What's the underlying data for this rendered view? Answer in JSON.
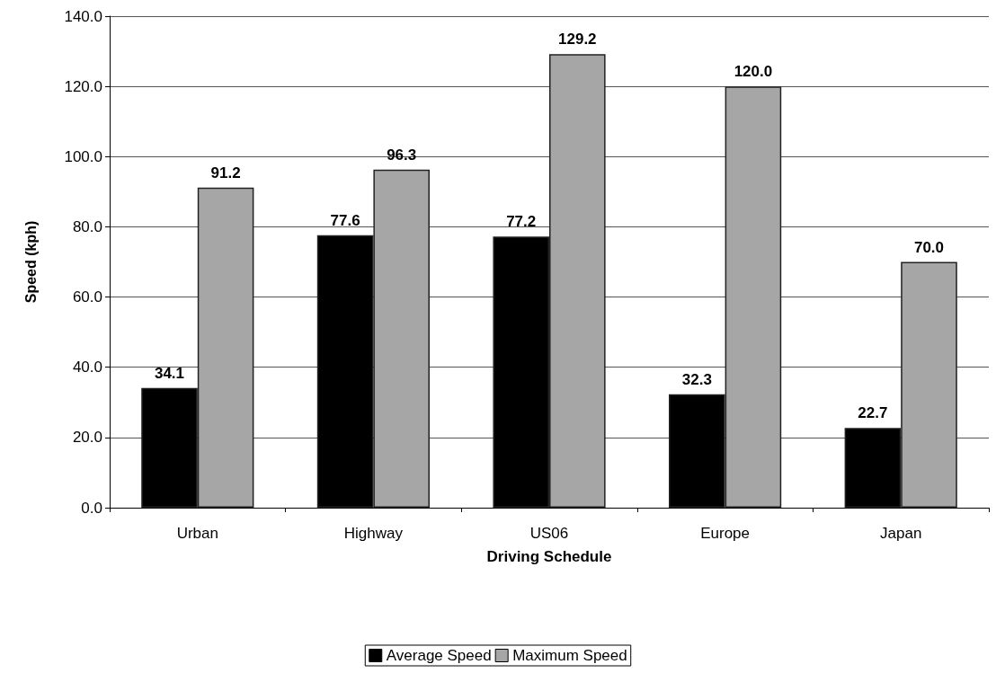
{
  "chart_data": {
    "type": "bar",
    "xlabel": "Driving Schedule",
    "ylabel": "Speed (kph)",
    "categories": [
      "Urban",
      "Highway",
      "US06",
      "Europe",
      "Japan"
    ],
    "series": [
      {
        "name": "Average Speed",
        "color": "#000000",
        "values": [
          34.1,
          77.6,
          77.2,
          32.3,
          22.7
        ],
        "value_labels": [
          "34.1",
          "77.6",
          "77.2",
          "32.3",
          "22.7"
        ]
      },
      {
        "name": "Maximum Speed",
        "color": "#a6a6a6",
        "values": [
          91.2,
          96.3,
          129.2,
          120.0,
          70.0
        ],
        "value_labels": [
          "91.2",
          "96.3",
          "129.2",
          "120.0",
          "70.0"
        ]
      }
    ],
    "ylim": [
      0,
      140
    ],
    "yticks": [
      {
        "value": 0,
        "label": "0.0"
      },
      {
        "value": 20,
        "label": "20.0"
      },
      {
        "value": 40,
        "label": "40.0"
      },
      {
        "value": 60,
        "label": "60.0"
      },
      {
        "value": 80,
        "label": "80.0"
      },
      {
        "value": 100,
        "label": "100.0"
      },
      {
        "value": 120,
        "label": "120.0"
      },
      {
        "value": 140,
        "label": "140.0"
      }
    ],
    "grid": "y",
    "legend": "bottom"
  }
}
